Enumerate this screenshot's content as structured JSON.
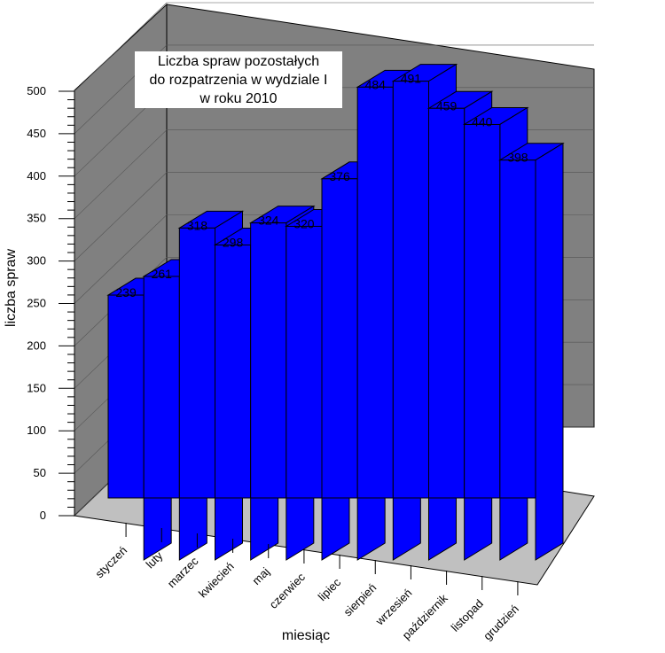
{
  "chart_data": {
    "type": "bar",
    "title_lines": [
      "Liczba spraw pozostałych",
      "do rozpatrzenia w  wydziale I",
      "w roku 2010"
    ],
    "xlabel": "miesiąc",
    "ylabel": "liczba spraw",
    "ylim": [
      0,
      500
    ],
    "y_ticks": [
      0,
      50,
      100,
      150,
      200,
      250,
      300,
      350,
      400,
      450,
      500
    ],
    "categories": [
      "styczeń",
      "luty",
      "marzec",
      "kwiecień",
      "maj",
      "czerwiec",
      "lipiec",
      "sierpień",
      "wrzesień",
      "październik",
      "listopad",
      "grudzień"
    ],
    "values": [
      239,
      261,
      318,
      298,
      324,
      320,
      376,
      484,
      491,
      459,
      440,
      398
    ],
    "bar_color": "#0000ff",
    "wall_color": "#808080",
    "floor_color": "#c0c0c0",
    "projection": "3d"
  }
}
